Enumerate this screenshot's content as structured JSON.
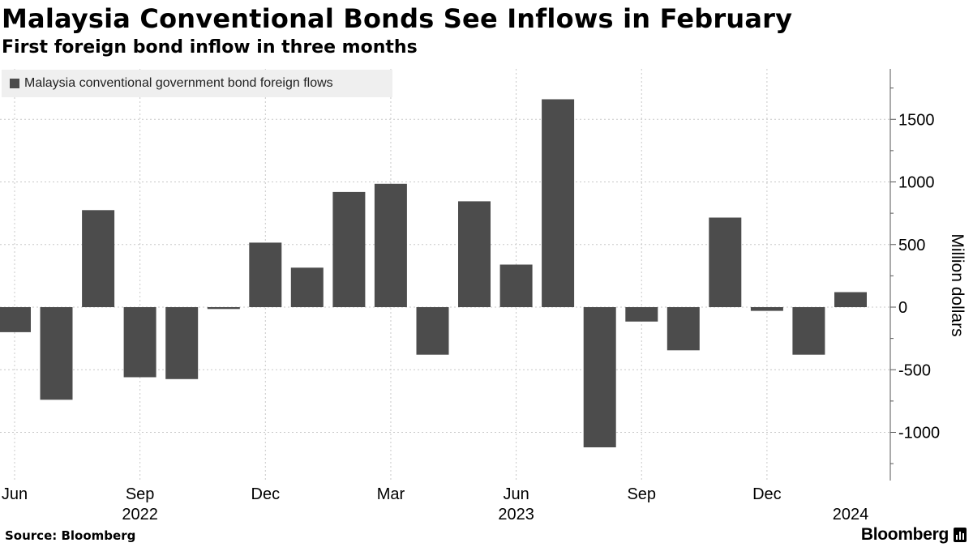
{
  "header": {
    "title": "Malaysia Conventional Bonds See Inflows in February",
    "subtitle": "First foreign bond inflow in three months"
  },
  "footer": {
    "source": "Source: Bloomberg",
    "brand": "Bloomberg"
  },
  "colors": {
    "bar": "#4c4c4c",
    "grid": "#c8c8c8",
    "axis": "#555555",
    "legend_bg": "#efefef"
  },
  "chart_data": {
    "type": "bar",
    "title": "Malaysia Conventional Bonds See Inflows in February",
    "subtitle": "First foreign bond inflow in three months",
    "xlabel": "",
    "ylabel": "Million dollars",
    "ylim": [
      -1250,
      1900
    ],
    "y_ticks": [
      -1000,
      -500,
      0,
      500,
      1000,
      1500
    ],
    "y_tick_labels": [
      "-1000",
      "-500",
      "0",
      "500",
      "1000",
      "1500"
    ],
    "grid": true,
    "legend_position": "top-left",
    "categories": [
      "Jun 2022",
      "Jul 2022",
      "Aug 2022",
      "Sep 2022",
      "Oct 2022",
      "Nov 2022",
      "Dec 2022",
      "Jan 2023",
      "Feb 2023",
      "Mar 2023",
      "Apr 2023",
      "May 2023",
      "Jun 2023",
      "Jul 2023",
      "Aug 2023",
      "Sep 2023",
      "Oct 2023",
      "Nov 2023",
      "Dec 2023",
      "Jan 2024",
      "Feb 2024"
    ],
    "series": [
      {
        "name": "Malaysia conventional government bond foreign flows",
        "values": [
          -200,
          -740,
          775,
          -560,
          -575,
          -15,
          515,
          315,
          920,
          985,
          -380,
          845,
          340,
          1660,
          -1120,
          -115,
          -345,
          715,
          -30,
          -380,
          120
        ]
      }
    ],
    "x_tick_labels": [
      {
        "index": 0,
        "month": "Jun",
        "year": ""
      },
      {
        "index": 3,
        "month": "Sep",
        "year": "2022"
      },
      {
        "index": 6,
        "month": "Dec",
        "year": ""
      },
      {
        "index": 9,
        "month": "Mar",
        "year": ""
      },
      {
        "index": 12,
        "month": "Jun",
        "year": "2023"
      },
      {
        "index": 15,
        "month": "Sep",
        "year": ""
      },
      {
        "index": 18,
        "month": "Dec",
        "year": ""
      },
      {
        "index": 20,
        "month": "",
        "year": "2024"
      }
    ]
  }
}
